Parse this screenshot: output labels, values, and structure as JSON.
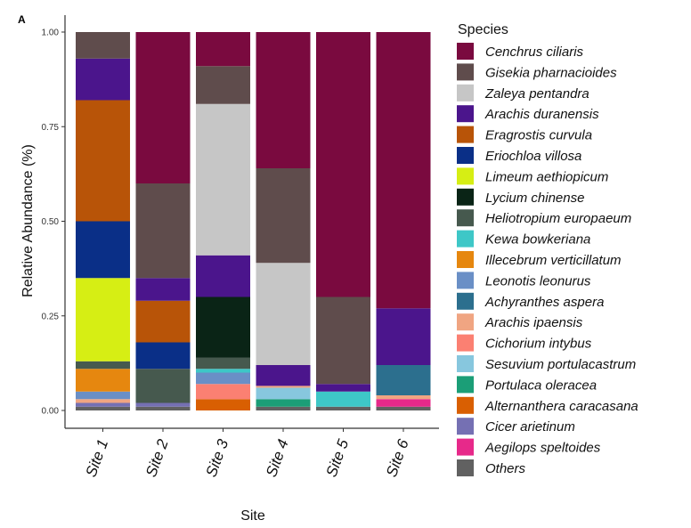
{
  "panel_label": "A",
  "chart_data": {
    "type": "bar",
    "stacked": true,
    "xlabel": "Site",
    "ylabel": "Relative Abundance (%)",
    "ylim": [
      0,
      1
    ],
    "yticks": [
      "0.00",
      "0.25",
      "0.50",
      "0.75",
      "1.00"
    ],
    "categories": [
      "Site 1",
      "Site 2",
      "Site 3",
      "Site 4",
      "Site 5",
      "Site 6"
    ],
    "legend_title": "Species",
    "legend_position": "right",
    "series": [
      {
        "name": "Others",
        "color": "#616161",
        "values": [
          0.01,
          0.01,
          0.0,
          0.01,
          0.01,
          0.01
        ]
      },
      {
        "name": "Aegilops speltoides",
        "color": "#e7298a",
        "values": [
          0.0,
          0.0,
          0.0,
          0.0,
          0.0,
          0.02
        ]
      },
      {
        "name": "Cicer arietinum",
        "color": "#7570b3",
        "values": [
          0.01,
          0.01,
          0.0,
          0.0,
          0.0,
          0.0
        ]
      },
      {
        "name": "Alternanthera caracasana",
        "color": "#d95f02",
        "values": [
          0.0,
          0.0,
          0.03,
          0.0,
          0.0,
          0.0
        ]
      },
      {
        "name": "Portulaca oleracea",
        "color": "#1b9e77",
        "values": [
          0.0,
          0.0,
          0.0,
          0.02,
          0.0,
          0.0
        ]
      },
      {
        "name": "Sesuvium portulacastrum",
        "color": "#87c7de",
        "values": [
          0.0,
          0.0,
          0.0,
          0.03,
          0.0,
          0.0
        ]
      },
      {
        "name": "Cichorium intybus",
        "color": "#fb8072",
        "values": [
          0.0,
          0.0,
          0.04,
          0.0,
          0.0,
          0.0
        ]
      },
      {
        "name": "Arachis ipaensis",
        "color": "#f0a582",
        "values": [
          0.01,
          0.0,
          0.0,
          0.005,
          0.0,
          0.01
        ]
      },
      {
        "name": "Achyranthes aspera",
        "color": "#2c6f8e",
        "values": [
          0.0,
          0.0,
          0.0,
          0.0,
          0.0,
          0.08
        ]
      },
      {
        "name": "Leonotis leonurus",
        "color": "#6a8fc6",
        "values": [
          0.02,
          0.0,
          0.03,
          0.0,
          0.0,
          0.0
        ]
      },
      {
        "name": "Illecebrum verticillatum",
        "color": "#e6870f",
        "values": [
          0.06,
          0.0,
          0.0,
          0.0,
          0.0,
          0.0
        ]
      },
      {
        "name": "Kewa bowkeriana",
        "color": "#3ec7c7",
        "values": [
          0.0,
          0.0,
          0.01,
          0.0,
          0.04,
          0.0
        ]
      },
      {
        "name": "Heliotropium europaeum",
        "color": "#46594e",
        "values": [
          0.02,
          0.09,
          0.03,
          0.0,
          0.0,
          0.0
        ]
      },
      {
        "name": "Lycium chinense",
        "color": "#0a2416",
        "values": [
          0.0,
          0.0,
          0.16,
          0.0,
          0.0,
          0.0
        ]
      },
      {
        "name": "Limeum aethiopicum",
        "color": "#d6ee14",
        "values": [
          0.22,
          0.0,
          0.0,
          0.0,
          0.0,
          0.0
        ]
      },
      {
        "name": "Eriochloa villosa",
        "color": "#0a2f87",
        "values": [
          0.15,
          0.07,
          0.0,
          0.0,
          0.0,
          0.0
        ]
      },
      {
        "name": "Eragrostis curvula",
        "color": "#b85408",
        "values": [
          0.32,
          0.11,
          0.0,
          0.0,
          0.0,
          0.0
        ]
      },
      {
        "name": "Arachis duranensis",
        "color": "#4b158c",
        "values": [
          0.11,
          0.06,
          0.11,
          0.055,
          0.02,
          0.15
        ]
      },
      {
        "name": "Zaleya pentandra",
        "color": "#c6c6c6",
        "values": [
          0.0,
          0.0,
          0.4,
          0.27,
          0.0,
          0.0
        ]
      },
      {
        "name": "Gisekia pharnacioides",
        "color": "#5f4c4c",
        "values": [
          0.075,
          0.25,
          0.1,
          0.25,
          0.23,
          0.0
        ]
      },
      {
        "name": "Cenchrus ciliaris",
        "color": "#7a0a3f",
        "values": [
          0.0,
          0.4,
          0.09,
          0.36,
          0.7,
          0.72
        ]
      }
    ]
  }
}
